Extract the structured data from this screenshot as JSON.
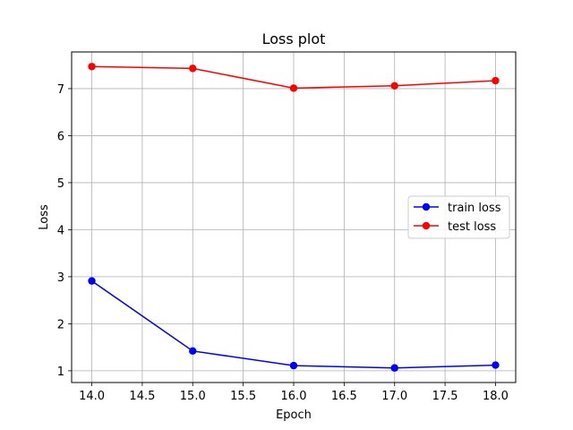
{
  "chart_data": {
    "type": "line",
    "title": "Loss plot",
    "xlabel": "Epoch",
    "ylabel": "Loss",
    "x": [
      14.0,
      15.0,
      16.0,
      17.0,
      18.0
    ],
    "series": [
      {
        "name": "train loss",
        "values": [
          2.91,
          1.42,
          1.11,
          1.06,
          1.12
        ],
        "color": "#0000ff"
      },
      {
        "name": "test loss",
        "values": [
          7.47,
          7.43,
          7.01,
          7.06,
          7.17
        ],
        "color": "#ff0000"
      }
    ],
    "xlim": [
      13.8,
      18.2
    ],
    "ylim": [
      0.75,
      7.78
    ],
    "xticks": [
      "14.0",
      "14.5",
      "15.0",
      "15.5",
      "16.0",
      "16.5",
      "17.0",
      "17.5",
      "18.0"
    ],
    "yticks": [
      "1",
      "2",
      "3",
      "4",
      "5",
      "6",
      "7"
    ],
    "grid": true,
    "legend_position": "center-right"
  }
}
